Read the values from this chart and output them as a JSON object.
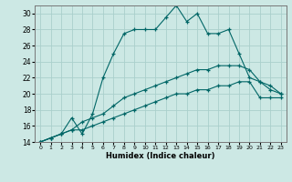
{
  "xlabel": "Humidex (Indice chaleur)",
  "bg_color": "#cce8e4",
  "grid_color": "#aacfcc",
  "line_color": "#006666",
  "xlim": [
    -0.5,
    23.5
  ],
  "ylim": [
    14,
    31
  ],
  "xticks": [
    0,
    1,
    2,
    3,
    4,
    5,
    6,
    7,
    8,
    9,
    10,
    11,
    12,
    13,
    14,
    15,
    16,
    17,
    18,
    19,
    20,
    21,
    22,
    23
  ],
  "yticks": [
    14,
    16,
    18,
    20,
    22,
    24,
    26,
    28,
    30
  ],
  "line1_x": [
    0,
    1,
    2,
    3,
    4,
    5,
    6,
    7,
    8,
    9,
    10,
    11,
    12,
    13,
    14,
    15,
    16,
    17,
    18,
    19,
    20,
    21,
    22,
    23
  ],
  "line1_y": [
    14.0,
    14.5,
    15.0,
    17.0,
    15.0,
    17.5,
    22.0,
    25.0,
    27.5,
    28.0,
    28.0,
    28.0,
    29.5,
    31.0,
    29.0,
    30.0,
    27.5,
    27.5,
    28.0,
    25.0,
    22.0,
    21.5,
    20.5,
    20.0
  ],
  "line2_x": [
    0,
    1,
    2,
    3,
    4,
    5,
    6,
    7,
    8,
    9,
    10,
    11,
    12,
    13,
    14,
    15,
    16,
    17,
    18,
    19,
    20,
    21,
    22,
    23
  ],
  "line2_y": [
    14.0,
    14.5,
    15.0,
    15.5,
    16.5,
    17.0,
    17.5,
    18.5,
    19.5,
    20.0,
    20.5,
    21.0,
    21.5,
    22.0,
    22.5,
    23.0,
    23.0,
    23.5,
    23.5,
    23.5,
    23.0,
    21.5,
    21.0,
    20.0
  ],
  "line3_x": [
    0,
    1,
    2,
    3,
    4,
    5,
    6,
    7,
    8,
    9,
    10,
    11,
    12,
    13,
    14,
    15,
    16,
    17,
    18,
    19,
    20,
    21,
    22,
    23
  ],
  "line3_y": [
    14.0,
    14.5,
    15.0,
    15.5,
    15.5,
    16.0,
    16.5,
    17.0,
    17.5,
    18.0,
    18.5,
    19.0,
    19.5,
    20.0,
    20.0,
    20.5,
    20.5,
    21.0,
    21.0,
    21.5,
    21.5,
    19.5,
    19.5,
    19.5
  ]
}
